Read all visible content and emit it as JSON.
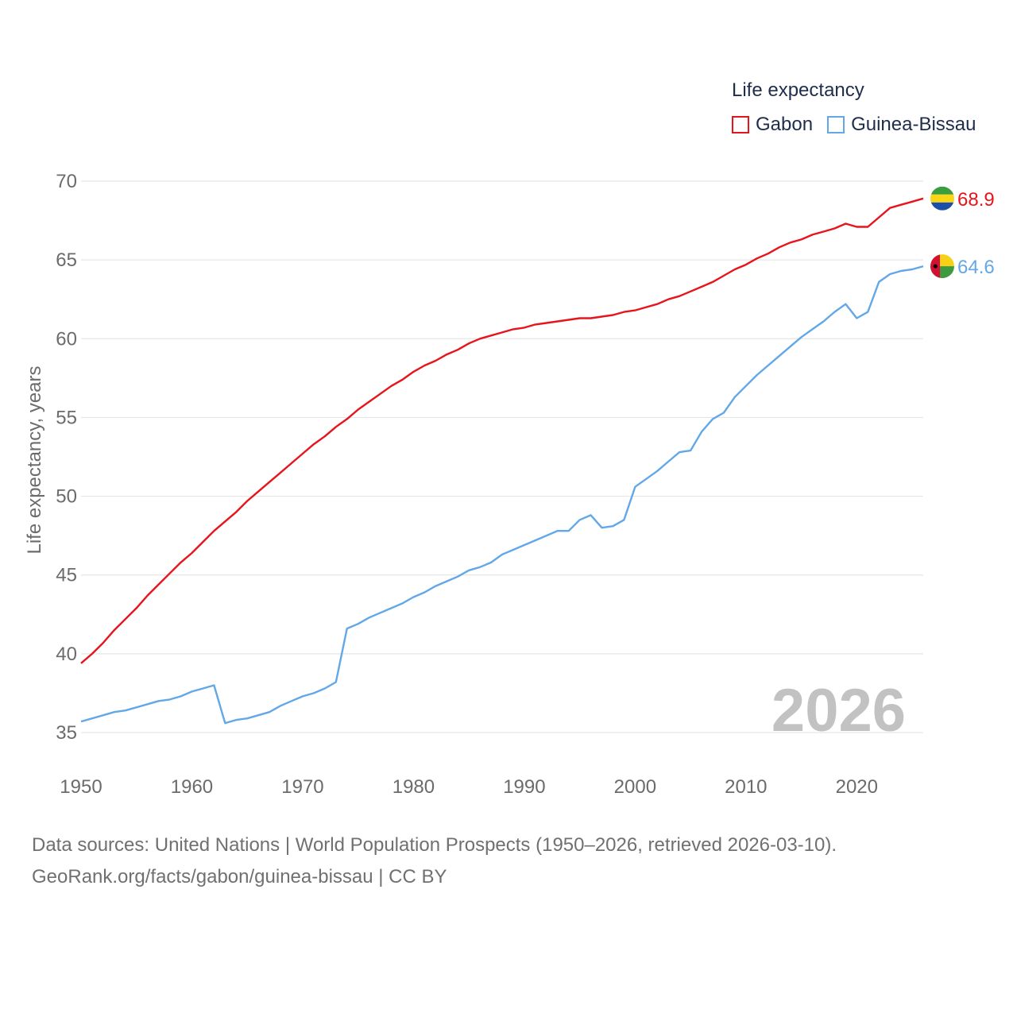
{
  "chart_data": {
    "type": "line",
    "title": "Life expectancy",
    "ylabel": "Life expectancy, years",
    "xlabel": "",
    "ylim": [
      35,
      70
    ],
    "xlim": [
      1950,
      2026
    ],
    "y_ticks": [
      35,
      40,
      45,
      50,
      55,
      60,
      65,
      70
    ],
    "x_ticks": [
      1950,
      1960,
      1970,
      1980,
      1990,
      2000,
      2010,
      2020
    ],
    "year_label": "2026",
    "grid": true,
    "legend_position": "top-right",
    "series": [
      {
        "name": "Gabon",
        "color": "#e8141b",
        "end_label": "68.9",
        "flag": "gabon-flag",
        "x": [
          1950,
          1951,
          1952,
          1953,
          1954,
          1955,
          1956,
          1957,
          1958,
          1959,
          1960,
          1961,
          1962,
          1963,
          1964,
          1965,
          1966,
          1967,
          1968,
          1969,
          1970,
          1971,
          1972,
          1973,
          1974,
          1975,
          1976,
          1977,
          1978,
          1979,
          1980,
          1981,
          1982,
          1983,
          1984,
          1985,
          1986,
          1987,
          1988,
          1989,
          1990,
          1991,
          1992,
          1993,
          1994,
          1995,
          1996,
          1997,
          1998,
          1999,
          2000,
          2001,
          2002,
          2003,
          2004,
          2005,
          2006,
          2007,
          2008,
          2009,
          2010,
          2011,
          2012,
          2013,
          2014,
          2015,
          2016,
          2017,
          2018,
          2019,
          2020,
          2021,
          2022,
          2023,
          2024,
          2025,
          2026
        ],
        "values": [
          39.4,
          40.0,
          40.7,
          41.5,
          42.2,
          42.9,
          43.7,
          44.4,
          45.1,
          45.8,
          46.4,
          47.1,
          47.8,
          48.4,
          49.0,
          49.7,
          50.3,
          50.9,
          51.5,
          52.1,
          52.7,
          53.3,
          53.8,
          54.4,
          54.9,
          55.5,
          56.0,
          56.5,
          57.0,
          57.4,
          57.9,
          58.3,
          58.6,
          59.0,
          59.3,
          59.7,
          60.0,
          60.2,
          60.4,
          60.6,
          60.7,
          60.9,
          61.0,
          61.1,
          61.2,
          61.3,
          61.3,
          61.4,
          61.5,
          61.7,
          61.8,
          62.0,
          62.2,
          62.5,
          62.7,
          63.0,
          63.3,
          63.6,
          64.0,
          64.4,
          64.7,
          65.1,
          65.4,
          65.8,
          66.1,
          66.3,
          66.6,
          66.8,
          67.0,
          67.3,
          67.1,
          67.1,
          67.7,
          68.3,
          68.5,
          68.7,
          68.9
        ]
      },
      {
        "name": "Guinea-Bissau",
        "color": "#62a8e8",
        "end_label": "64.6",
        "flag": "guinea-bissau-flag",
        "x": [
          1950,
          1951,
          1952,
          1953,
          1954,
          1955,
          1956,
          1957,
          1958,
          1959,
          1960,
          1961,
          1962,
          1963,
          1964,
          1965,
          1966,
          1967,
          1968,
          1969,
          1970,
          1971,
          1972,
          1973,
          1974,
          1975,
          1976,
          1977,
          1978,
          1979,
          1980,
          1981,
          1982,
          1983,
          1984,
          1985,
          1986,
          1987,
          1988,
          1989,
          1990,
          1991,
          1992,
          1993,
          1994,
          1995,
          1996,
          1997,
          1998,
          1999,
          2000,
          2001,
          2002,
          2003,
          2004,
          2005,
          2006,
          2007,
          2008,
          2009,
          2010,
          2011,
          2012,
          2013,
          2014,
          2015,
          2016,
          2017,
          2018,
          2019,
          2020,
          2021,
          2022,
          2023,
          2024,
          2025,
          2026
        ],
        "values": [
          35.7,
          35.9,
          36.1,
          36.3,
          36.4,
          36.6,
          36.8,
          37.0,
          37.1,
          37.3,
          37.6,
          37.8,
          38.0,
          35.6,
          35.8,
          35.9,
          36.1,
          36.3,
          36.7,
          37.0,
          37.3,
          37.5,
          37.8,
          38.2,
          41.6,
          41.9,
          42.3,
          42.6,
          42.9,
          43.2,
          43.6,
          43.9,
          44.3,
          44.6,
          44.9,
          45.3,
          45.5,
          45.8,
          46.3,
          46.6,
          46.9,
          47.2,
          47.5,
          47.8,
          47.8,
          48.5,
          48.8,
          48.0,
          48.1,
          48.5,
          50.6,
          51.1,
          51.6,
          52.2,
          52.8,
          52.9,
          54.1,
          54.9,
          55.3,
          56.3,
          57.0,
          57.7,
          58.3,
          58.9,
          59.5,
          60.1,
          60.6,
          61.1,
          61.7,
          62.2,
          61.3,
          61.7,
          63.6,
          64.1,
          64.3,
          64.4,
          64.6
        ]
      }
    ]
  },
  "source": {
    "line1": "Data sources: United Nations | World Population Prospects (1950–2026, retrieved 2026-03-10).",
    "line2": "GeoRank.org/facts/gabon/guinea-bissau | CC BY"
  }
}
